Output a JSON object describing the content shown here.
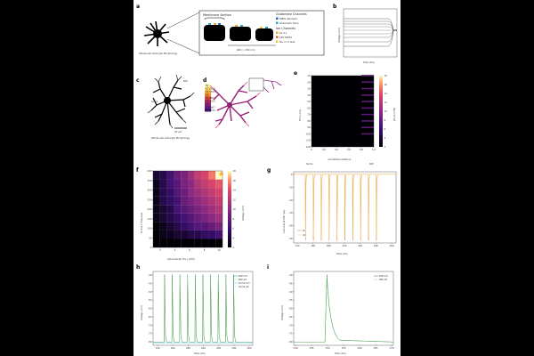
{
  "figure": {
    "panel_labels": [
      "a",
      "b",
      "c",
      "d",
      "e",
      "f",
      "g",
      "h",
      "i"
    ],
    "a": {
      "astrocyte_label": "Whole-Cell Astrocyte Morphology",
      "membrane_section": "Membrane Section",
      "pap_label": "PAP (< 300 nm)",
      "glutamate_header": "Glutamate Channels",
      "glutamate_items": [
        "NMDA Receptor",
        "Glutamate Trans."
      ],
      "ion_header": "Ion Channels",
      "ion_items": [
        "Kir 4.1",
        "K2P TREK1",
        "Na, Cl, K leak"
      ],
      "colors": {
        "nmda": "#1f6bb5",
        "glut": "#2aa5c8",
        "kir": "#f2a33a",
        "k2p": "#e0632a",
        "leak": "#f4c542"
      }
    },
    "b": {
      "ylabel": "Voltage (mV)",
      "xlabel": "time (ms)"
    },
    "c": {
      "pap": "PAP",
      "soma": "Soma",
      "scale": "20 μm",
      "caption": "Whole-Cell Astrocyte Morphology"
    },
    "d": {
      "legend_values": [
        "60",
        "61.6667",
        "63.3333",
        "65",
        "66.6667",
        "68.3333",
        "70",
        "71.6667",
        "73.3333"
      ]
    },
    "e": {
      "ylabel": "Time (ms)",
      "xlabel": "normalized distance",
      "xticks": [
        "0",
        "0.2",
        "0.4",
        "0.6",
        "0.8",
        "1.0"
      ],
      "yticks": [
        "10",
        "20",
        "30",
        "40",
        "50",
        "60",
        "70",
        "80",
        "90",
        "100",
        "110",
        "120"
      ],
      "soma": "Soma",
      "pap": "PAP",
      "cbar_label": "[K+]o (mM)",
      "cbar_ticks": [
        "18",
        "16",
        "14",
        "12",
        "10",
        "8",
        "6",
        "4",
        "2"
      ]
    },
    "f": {
      "ylabel": "# of K+ Channels",
      "xlabel": "extracellular [K+] (mM)",
      "xticks": [
        "2",
        "4",
        "6",
        "8",
        "10"
      ],
      "yticks": [
        "400",
        "350",
        "300",
        "250",
        "200",
        "150",
        "100",
        "50",
        "0"
      ],
      "cbar_label": "Voltage (mV)",
      "cbar_ticks": [
        "18",
        "16",
        "14",
        "12",
        "10",
        "8",
        "6",
        "4",
        "2"
      ]
    },
    "g": {
      "ylabel": "Currents at PAP (pA)",
      "xlabel": "time (ms)",
      "xticks": [
        "140",
        "160",
        "180",
        "200",
        "220",
        "240",
        "260"
      ],
      "yticks": [
        "0",
        "-10",
        "-20",
        "-30",
        "-40",
        "-50"
      ],
      "legend": [
        "IK",
        "ICl"
      ]
    },
    "h": {
      "ylabel": "Voltage (mV)",
      "xlabel": "time (ms)",
      "xticks": [
        "140",
        "160",
        "180",
        "200",
        "220",
        "240",
        "260"
      ],
      "yticks": [
        "-40",
        "-45",
        "-50",
        "-55",
        "-60",
        "-65",
        "-70",
        "-75",
        "-80"
      ],
      "legend": [
        "PAP trm",
        "PAP alt",
        "Soma trm",
        "Soma alt"
      ]
    },
    "i": {
      "ylabel": "Voltage (mV)",
      "xlabel": "time (ms)",
      "xticks": [
        "140",
        "145",
        "150",
        "155",
        "160",
        "165",
        "170"
      ],
      "yticks": [
        "-40",
        "-45",
        "-50",
        "-55",
        "-60",
        "-65",
        "-70",
        "-75",
        "-80"
      ],
      "legend": [
        "PAP trm",
        "PAP alt"
      ]
    }
  },
  "chart_data": [
    {
      "type": "heatmap",
      "panel": "e",
      "title": "",
      "xlabel": "normalized distance",
      "ylabel": "Time (ms)",
      "xlim": [
        0,
        1
      ],
      "ylim": [
        10,
        120
      ],
      "description_values": {
        "pulse_times_ms": [
          10,
          20,
          30,
          40,
          50,
          60,
          70,
          80,
          90,
          100
        ],
        "pulse_region_normalized_distance": [
          0.8,
          1.0
        ]
      },
      "colorbar": {
        "label": "[K+]o (mM)",
        "range": [
          2,
          18
        ]
      }
    },
    {
      "type": "heatmap",
      "panel": "f",
      "title": "",
      "xlabel": "extracellular [K+] (mM)",
      "ylabel": "# of K+ Channels",
      "x": [
        1,
        2,
        3,
        4,
        5,
        6,
        7,
        8,
        9,
        10
      ],
      "y": [
        0,
        50,
        100,
        150,
        200,
        250,
        300,
        350,
        400
      ],
      "values": [
        [
          0,
          0,
          0,
          0,
          0,
          0,
          0,
          0,
          0,
          0
        ],
        [
          0,
          1,
          1,
          2,
          2,
          3,
          3,
          4,
          4,
          5
        ],
        [
          0,
          1,
          2,
          3,
          4,
          5,
          6,
          6,
          7,
          8
        ],
        [
          1,
          2,
          3,
          4,
          5,
          6,
          7,
          8,
          9,
          10
        ],
        [
          1,
          2,
          3,
          5,
          6,
          7,
          8,
          9,
          10,
          11
        ],
        [
          1,
          3,
          4,
          5,
          7,
          8,
          9,
          10,
          11,
          12
        ],
        [
          1,
          3,
          4,
          6,
          7,
          9,
          10,
          11,
          12,
          13
        ],
        [
          1,
          3,
          5,
          6,
          8,
          9,
          11,
          12,
          13,
          14
        ],
        [
          2,
          3,
          5,
          7,
          8,
          10,
          12,
          13,
          15,
          18
        ]
      ],
      "colorbar": {
        "label": "Voltage (mV)",
        "range": [
          0,
          18
        ]
      },
      "marker": {
        "x": 10,
        "y": 400,
        "shape": "star"
      }
    },
    {
      "type": "line",
      "panel": "g",
      "xlabel": "time (ms)",
      "ylabel": "Currents at PAP (pA)",
      "xlim": [
        135,
        265
      ],
      "ylim": [
        -55,
        2
      ],
      "series": [
        {
          "name": "IK",
          "baseline": 0,
          "spike_times": [
            150,
            160,
            170,
            180,
            190,
            200,
            210,
            220,
            230,
            240
          ],
          "spike_min": -53
        },
        {
          "name": "ICl",
          "baseline": 0,
          "spike_times": [
            150,
            160,
            170,
            180,
            190,
            200,
            210,
            220,
            230,
            240
          ],
          "spike_min": -50
        }
      ]
    },
    {
      "type": "line",
      "panel": "h",
      "xlabel": "time (ms)",
      "ylabel": "Voltage (mV)",
      "xlim": [
        135,
        265
      ],
      "ylim": [
        -82,
        -38
      ],
      "series": [
        {
          "name": "PAP trm",
          "baseline": -80,
          "spike_times": [
            150,
            160,
            170,
            180,
            190,
            200,
            210,
            220,
            230,
            240
          ],
          "peak": -40
        },
        {
          "name": "PAP alt",
          "baseline": -80,
          "spike_times": [
            150,
            160,
            170,
            180,
            190,
            200,
            210,
            220,
            230,
            240
          ],
          "peak": -41
        },
        {
          "name": "Soma trm",
          "baseline": -80.5,
          "spike_times": [],
          "peak": -80.5
        },
        {
          "name": "Soma alt",
          "baseline": -80.5,
          "spike_times": [],
          "peak": -80.5
        }
      ]
    },
    {
      "type": "line",
      "panel": "i",
      "xlabel": "time (ms)",
      "ylabel": "Voltage (mV)",
      "xlim": [
        140,
        170
      ],
      "ylim": [
        -82,
        -38
      ],
      "series": [
        {
          "name": "PAP trm",
          "baseline": -80,
          "spike_times": [
            150
          ],
          "peak": -40
        },
        {
          "name": "PAP alt",
          "baseline": -80,
          "spike_times": [
            150
          ],
          "peak": -41
        }
      ]
    }
  ]
}
